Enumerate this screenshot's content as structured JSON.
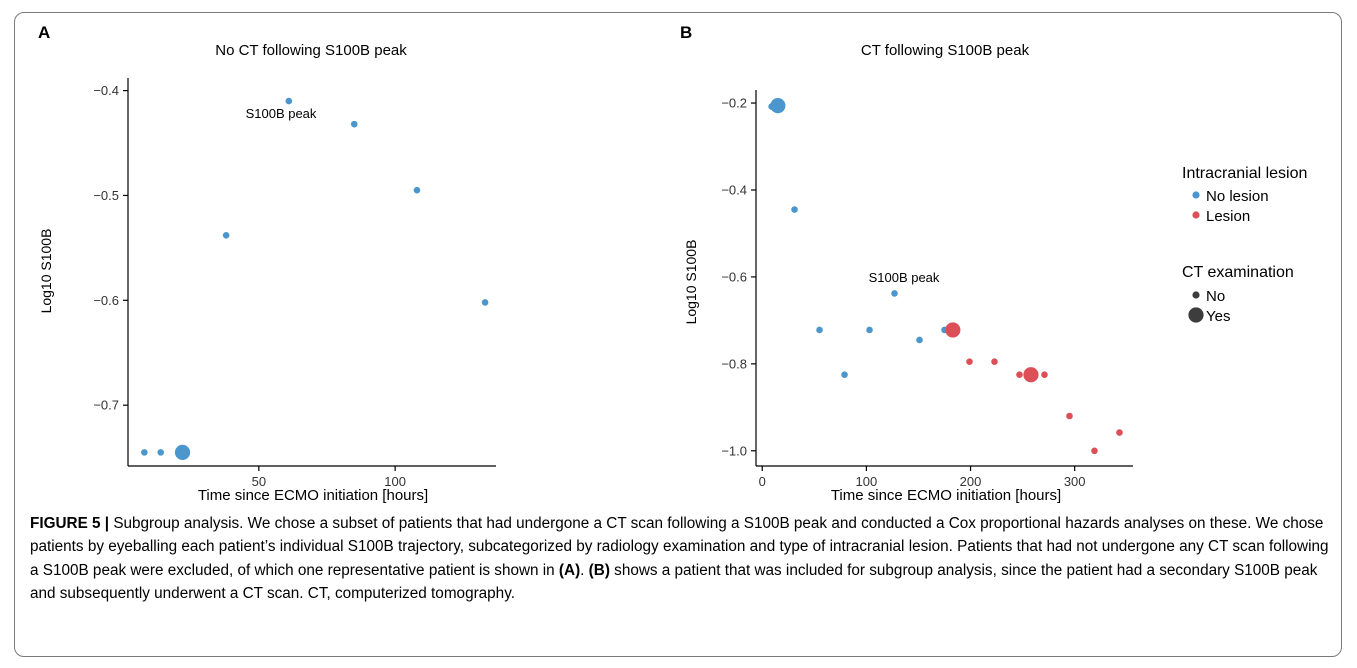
{
  "figure": {
    "panels": [
      {
        "letter": "A",
        "title": "No CT following S100B peak",
        "xlabel": "Time since ECMO initiation [hours]",
        "ylabel": "Log10 S100B",
        "annotation": "S100B peak"
      },
      {
        "letter": "B",
        "title": "CT following S100B peak",
        "xlabel": "Time since ECMO initiation [hours]",
        "ylabel": "Log10 S100B",
        "annotation": "S100B peak"
      }
    ],
    "legend": {
      "color_title": "Intracranial lesion",
      "color_items": [
        "No lesion",
        "Lesion"
      ],
      "size_title": "CT examination",
      "size_items": [
        "No",
        "Yes"
      ]
    }
  },
  "colors": {
    "no_lesion": "#4b97cd",
    "lesion": "#dd4f57",
    "legend_size_marker": "#3d3d3d"
  },
  "caption": {
    "label": "FIGURE 5 |",
    "text_1": " Subgroup analysis. We chose a subset of patients that had undergone a CT scan following a S100B peak and conducted a Cox proportional hazards analyses on these. We chose patients by eyeballing each patient’s individual S100B trajectory, subcategorized by radiology examination and type of intracranial lesion. Patients that had not undergone any CT scan following a S100B peak were excluded, of which one representative patient is shown in ",
    "ref_a": "(A)",
    "text_2": ". ",
    "ref_b": "(B)",
    "text_3": " shows a patient that was included for subgroup analysis, since the patient had a secondary S100B peak and subsequently underwent a CT scan. CT, computerized tomography."
  },
  "chart_data": [
    {
      "type": "scatter",
      "title": "No CT following S100B peak",
      "xlabel": "Time since ECMO initiation [hours]",
      "ylabel": "Log10 S100B",
      "xlim": [
        2,
        137
      ],
      "ylim": [
        -0.758,
        -0.388
      ],
      "xticks": [
        50,
        100
      ],
      "yticks": [
        -0.4,
        -0.5,
        -0.6,
        -0.7
      ],
      "xtick_labels": [
        "50",
        "100"
      ],
      "ytick_labels": [
        "−0.4",
        "−0.5",
        "−0.6",
        "−0.7"
      ],
      "annotation": {
        "text": "S100B peak",
        "x": 61,
        "y": -0.41
      },
      "points": [
        {
          "x": 8,
          "y": -0.745,
          "lesion": "No lesion",
          "ct": "No"
        },
        {
          "x": 14,
          "y": -0.745,
          "lesion": "No lesion",
          "ct": "No"
        },
        {
          "x": 22,
          "y": -0.745,
          "lesion": "No lesion",
          "ct": "Yes"
        },
        {
          "x": 38,
          "y": -0.538,
          "lesion": "No lesion",
          "ct": "No"
        },
        {
          "x": 61,
          "y": -0.41,
          "lesion": "No lesion",
          "ct": "No"
        },
        {
          "x": 85,
          "y": -0.432,
          "lesion": "No lesion",
          "ct": "No"
        },
        {
          "x": 108,
          "y": -0.495,
          "lesion": "No lesion",
          "ct": "No"
        },
        {
          "x": 133,
          "y": -0.602,
          "lesion": "No lesion",
          "ct": "No"
        }
      ]
    },
    {
      "type": "scatter",
      "title": "CT following S100B peak",
      "xlabel": "Time since ECMO initiation [hours]",
      "ylabel": "Log10 S100B",
      "xlim": [
        -6,
        356
      ],
      "ylim": [
        -1.035,
        -0.17
      ],
      "xticks": [
        0,
        100,
        200,
        300
      ],
      "yticks": [
        -0.2,
        -0.4,
        -0.6,
        -0.8,
        -1.0
      ],
      "xtick_labels": [
        "0",
        "100",
        "200",
        "300"
      ],
      "ytick_labels": [
        "−0.2",
        "−0.4",
        "−0.6",
        "−0.8",
        "−1.0"
      ],
      "annotation": {
        "text": "S100B peak",
        "x": 127,
        "y": -0.638
      },
      "legend": {
        "position": "right"
      },
      "points": [
        {
          "x": 9,
          "y": -0.208,
          "lesion": "No lesion",
          "ct": "No"
        },
        {
          "x": 15,
          "y": -0.206,
          "lesion": "No lesion",
          "ct": "Yes"
        },
        {
          "x": 31,
          "y": -0.445,
          "lesion": "No lesion",
          "ct": "No"
        },
        {
          "x": 55,
          "y": -0.722,
          "lesion": "No lesion",
          "ct": "No"
        },
        {
          "x": 79,
          "y": -0.825,
          "lesion": "No lesion",
          "ct": "No"
        },
        {
          "x": 103,
          "y": -0.722,
          "lesion": "No lesion",
          "ct": "No"
        },
        {
          "x": 127,
          "y": -0.638,
          "lesion": "No lesion",
          "ct": "No"
        },
        {
          "x": 151,
          "y": -0.745,
          "lesion": "No lesion",
          "ct": "No"
        },
        {
          "x": 175,
          "y": -0.722,
          "lesion": "No lesion",
          "ct": "No"
        },
        {
          "x": 183,
          "y": -0.722,
          "lesion": "Lesion",
          "ct": "Yes"
        },
        {
          "x": 199,
          "y": -0.795,
          "lesion": "Lesion",
          "ct": "No"
        },
        {
          "x": 223,
          "y": -0.795,
          "lesion": "Lesion",
          "ct": "No"
        },
        {
          "x": 247,
          "y": -0.825,
          "lesion": "Lesion",
          "ct": "No"
        },
        {
          "x": 258,
          "y": -0.825,
          "lesion": "Lesion",
          "ct": "Yes"
        },
        {
          "x": 271,
          "y": -0.825,
          "lesion": "Lesion",
          "ct": "No"
        },
        {
          "x": 295,
          "y": -0.92,
          "lesion": "Lesion",
          "ct": "No"
        },
        {
          "x": 319,
          "y": -1.0,
          "lesion": "Lesion",
          "ct": "No"
        },
        {
          "x": 343,
          "y": -0.958,
          "lesion": "Lesion",
          "ct": "No"
        }
      ]
    }
  ]
}
